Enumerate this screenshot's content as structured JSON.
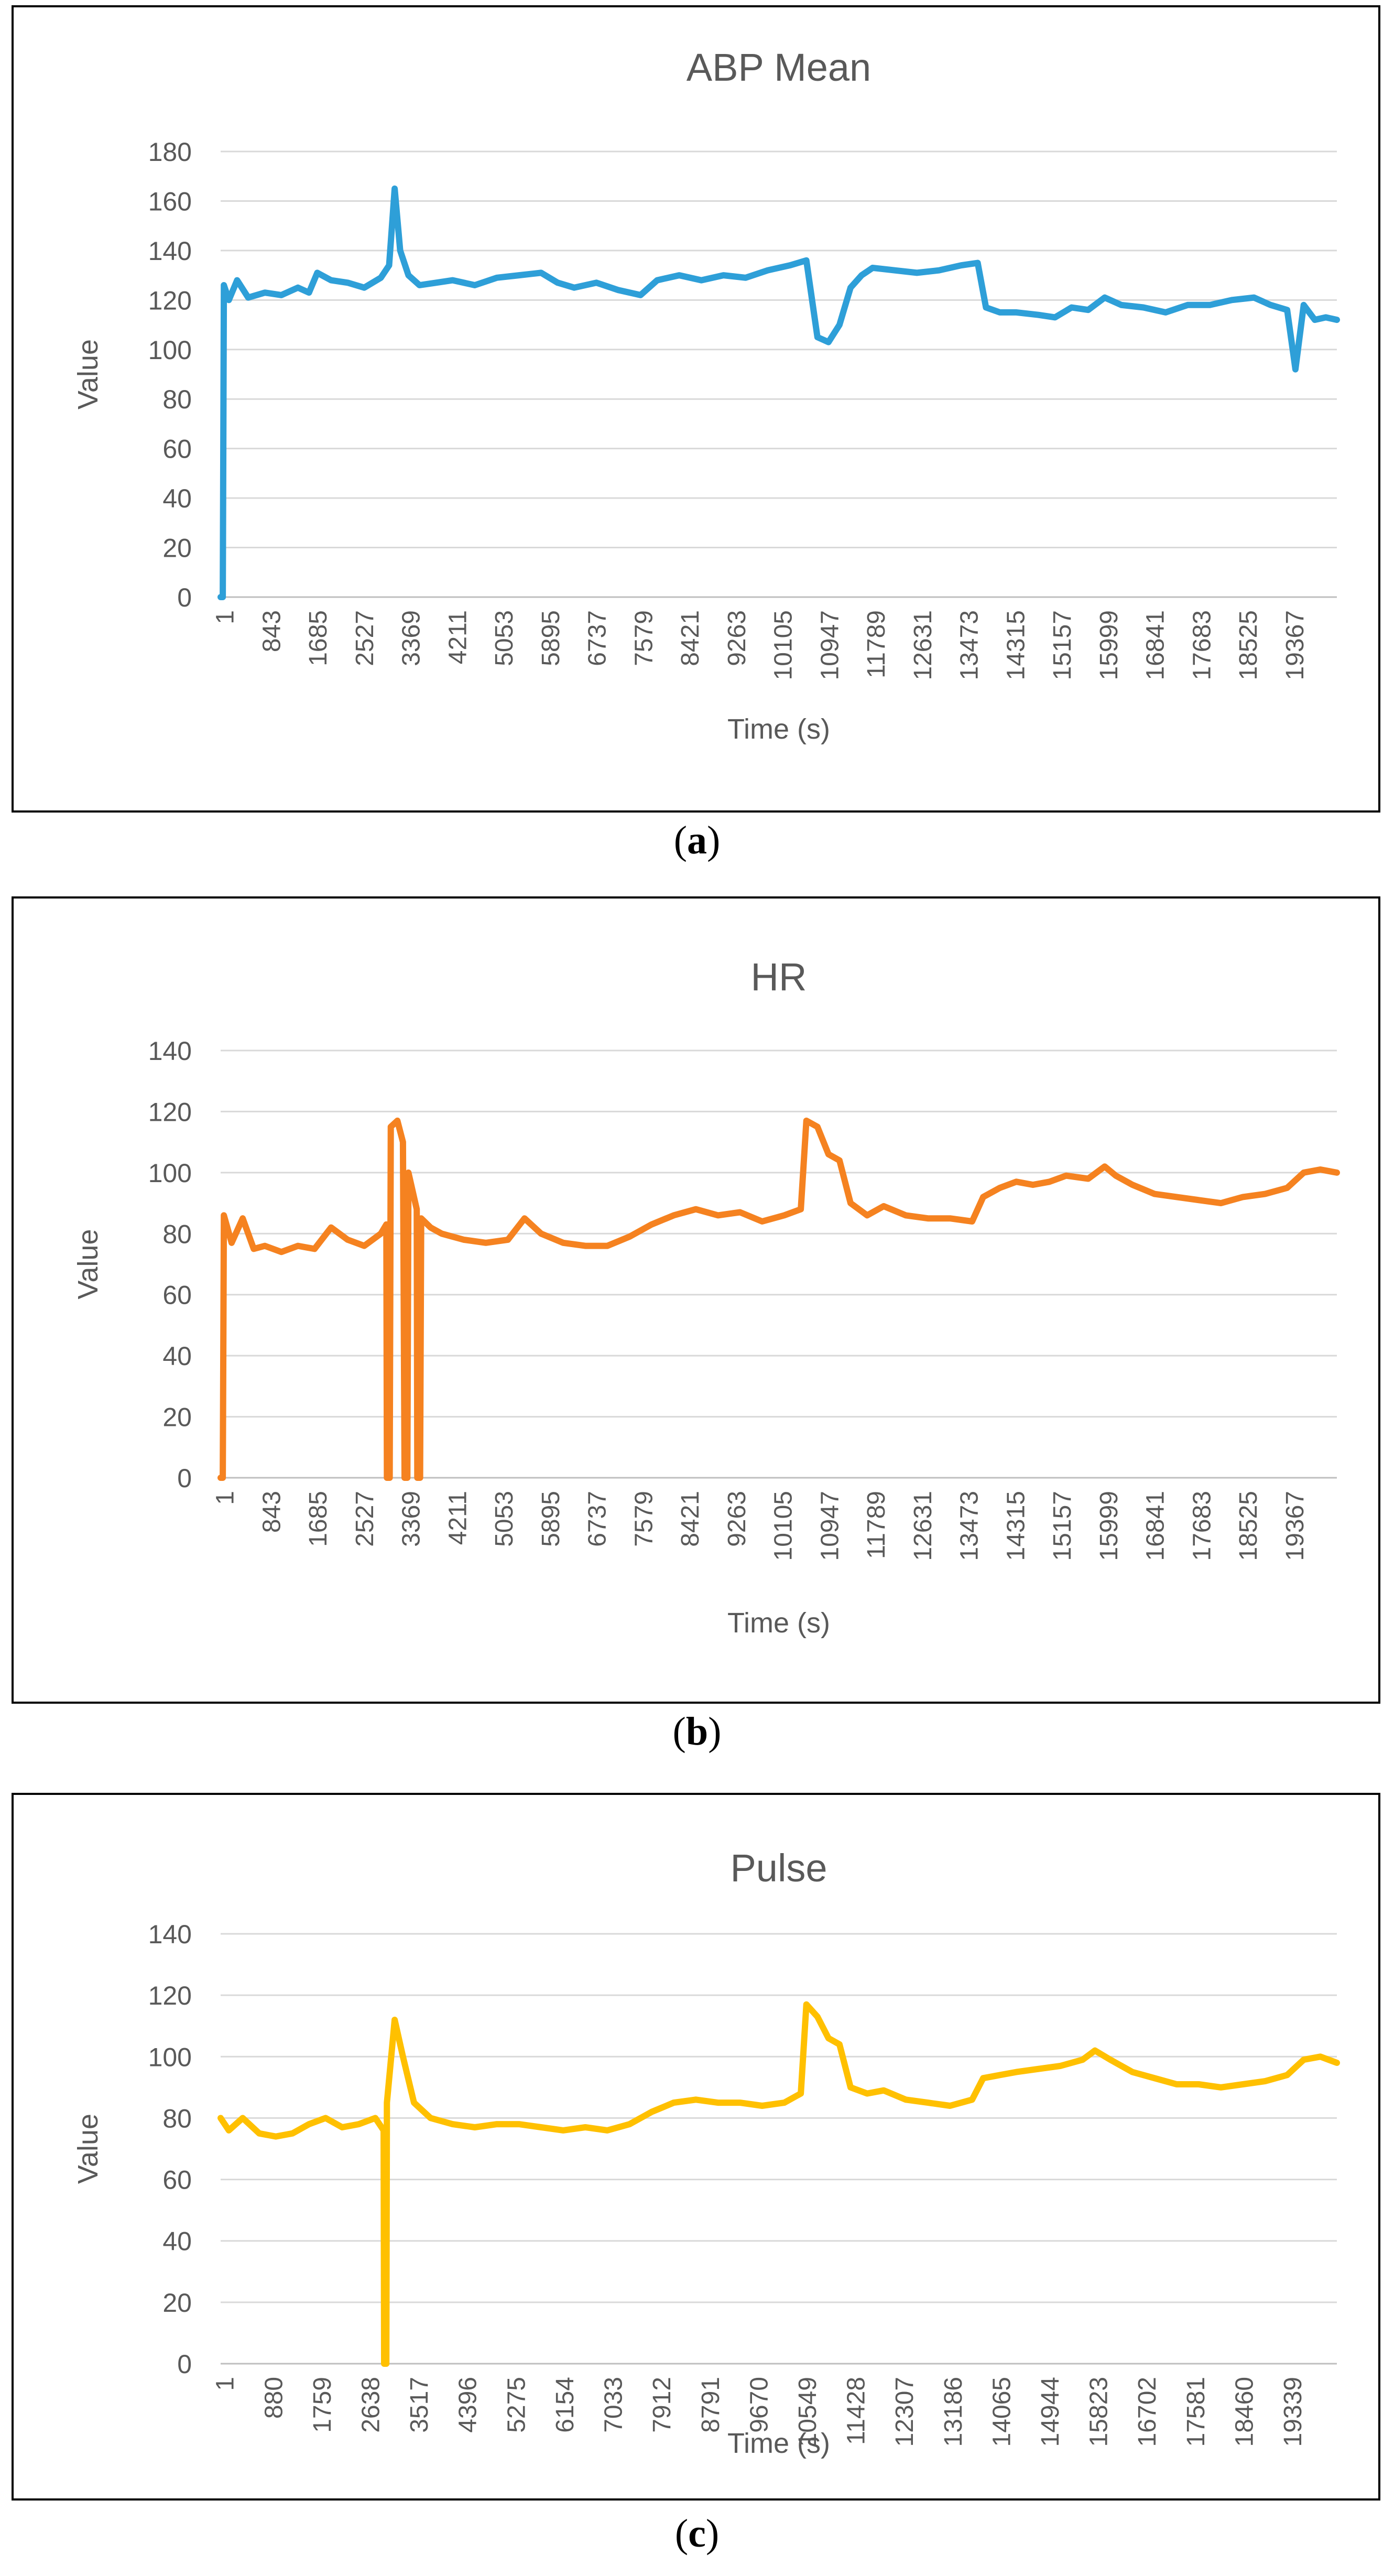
{
  "charts": [
    {
      "caption_open": "(",
      "caption_letter": "a",
      "caption_close": ")",
      "chart_data": {
        "type": "line",
        "title": "ABP Mean",
        "xlabel": "Time (s)",
        "ylabel": "Value",
        "ylim": [
          0,
          180
        ],
        "yticks": [
          "0",
          "20",
          "40",
          "60",
          "80",
          "100",
          "120",
          "140",
          "160",
          "180"
        ],
        "x_tick_labels": [
          "1",
          "843",
          "1685",
          "2527",
          "3369",
          "4211",
          "5053",
          "5895",
          "6737",
          "7579",
          "8421",
          "9263",
          "10105",
          "10947",
          "11789",
          "12631",
          "13473",
          "14315",
          "15157",
          "15999",
          "16841",
          "17683",
          "18525",
          "19367"
        ],
        "x_range": [
          1,
          20200
        ],
        "color": "#2e9fd8",
        "series": [
          {
            "name": "ABP Mean",
            "values": [
              [
                1,
                0
              ],
              [
                40,
                0
              ],
              [
                60,
                126
              ],
              [
                150,
                120
              ],
              [
                300,
                128
              ],
              [
                500,
                121
              ],
              [
                800,
                123
              ],
              [
                1100,
                122
              ],
              [
                1400,
                125
              ],
              [
                1600,
                123
              ],
              [
                1750,
                131
              ],
              [
                2000,
                128
              ],
              [
                2300,
                127
              ],
              [
                2600,
                125
              ],
              [
                2900,
                129
              ],
              [
                3050,
                134
              ],
              [
                3150,
                165
              ],
              [
                3250,
                140
              ],
              [
                3400,
                130
              ],
              [
                3600,
                126
              ],
              [
                3900,
                127
              ],
              [
                4200,
                128
              ],
              [
                4600,
                126
              ],
              [
                5000,
                129
              ],
              [
                5400,
                130
              ],
              [
                5800,
                131
              ],
              [
                6100,
                127
              ],
              [
                6400,
                125
              ],
              [
                6800,
                127
              ],
              [
                7200,
                124
              ],
              [
                7600,
                122
              ],
              [
                7900,
                128
              ],
              [
                8300,
                130
              ],
              [
                8700,
                128
              ],
              [
                9100,
                130
              ],
              [
                9500,
                129
              ],
              [
                9900,
                132
              ],
              [
                10300,
                134
              ],
              [
                10600,
                136
              ],
              [
                10800,
                105
              ],
              [
                11000,
                103
              ],
              [
                11200,
                110
              ],
              [
                11400,
                125
              ],
              [
                11600,
                130
              ],
              [
                11800,
                133
              ],
              [
                12200,
                132
              ],
              [
                12600,
                131
              ],
              [
                13000,
                132
              ],
              [
                13400,
                134
              ],
              [
                13700,
                135
              ],
              [
                13850,
                117
              ],
              [
                14100,
                115
              ],
              [
                14400,
                115
              ],
              [
                14800,
                114
              ],
              [
                15100,
                113
              ],
              [
                15400,
                117
              ],
              [
                15700,
                116
              ],
              [
                15999,
                121
              ],
              [
                16300,
                118
              ],
              [
                16700,
                117
              ],
              [
                17100,
                115
              ],
              [
                17500,
                118
              ],
              [
                17900,
                118
              ],
              [
                18300,
                120
              ],
              [
                18700,
                121
              ],
              [
                19000,
                118
              ],
              [
                19300,
                116
              ],
              [
                19450,
                92
              ],
              [
                19600,
                118
              ],
              [
                19800,
                112
              ],
              [
                20000,
                113
              ],
              [
                20200,
                112
              ]
            ]
          }
        ]
      }
    },
    {
      "caption_open": "(",
      "caption_letter": "b",
      "caption_close": ")",
      "chart_data": {
        "type": "line",
        "title": "HR",
        "xlabel": "Time (s)",
        "ylabel": "Value",
        "ylim": [
          0,
          140
        ],
        "yticks": [
          "0",
          "20",
          "40",
          "60",
          "80",
          "100",
          "120",
          "140"
        ],
        "x_tick_labels": [
          "1",
          "843",
          "1685",
          "2527",
          "3369",
          "4211",
          "5053",
          "5895",
          "6737",
          "7579",
          "8421",
          "9263",
          "10105",
          "10947",
          "11789",
          "12631",
          "13473",
          "14315",
          "15157",
          "15999",
          "16841",
          "17683",
          "18525",
          "19367"
        ],
        "x_range": [
          1,
          20200
        ],
        "color": "#f58220",
        "series": [
          {
            "name": "HR",
            "values": [
              [
                1,
                0
              ],
              [
                40,
                0
              ],
              [
                60,
                86
              ],
              [
                200,
                77
              ],
              [
                400,
                85
              ],
              [
                600,
                75
              ],
              [
                800,
                76
              ],
              [
                1100,
                74
              ],
              [
                1400,
                76
              ],
              [
                1700,
                75
              ],
              [
                2000,
                82
              ],
              [
                2300,
                78
              ],
              [
                2600,
                76
              ],
              [
                2900,
                80
              ],
              [
                3000,
                83
              ],
              [
                3010,
                0
              ],
              [
                3060,
                0
              ],
              [
                3080,
                115
              ],
              [
                3200,
                117
              ],
              [
                3300,
                110
              ],
              [
                3330,
                0
              ],
              [
                3380,
                0
              ],
              [
                3400,
                100
              ],
              [
                3550,
                88
              ],
              [
                3560,
                0
              ],
              [
                3610,
                0
              ],
              [
                3630,
                85
              ],
              [
                3800,
                82
              ],
              [
                4000,
                80
              ],
              [
                4400,
                78
              ],
              [
                4800,
                77
              ],
              [
                5200,
                78
              ],
              [
                5500,
                85
              ],
              [
                5800,
                80
              ],
              [
                6200,
                77
              ],
              [
                6600,
                76
              ],
              [
                7000,
                76
              ],
              [
                7400,
                79
              ],
              [
                7800,
                83
              ],
              [
                8200,
                86
              ],
              [
                8600,
                88
              ],
              [
                9000,
                86
              ],
              [
                9400,
                87
              ],
              [
                9800,
                84
              ],
              [
                10200,
                86
              ],
              [
                10500,
                88
              ],
              [
                10600,
                117
              ],
              [
                10800,
                115
              ],
              [
                11000,
                106
              ],
              [
                11200,
                104
              ],
              [
                11400,
                90
              ],
              [
                11700,
                86
              ],
              [
                12000,
                89
              ],
              [
                12400,
                86
              ],
              [
                12800,
                85
              ],
              [
                13200,
                85
              ],
              [
                13600,
                84
              ],
              [
                13800,
                92
              ],
              [
                14100,
                95
              ],
              [
                14400,
                97
              ],
              [
                14700,
                96
              ],
              [
                15000,
                97
              ],
              [
                15300,
                99
              ],
              [
                15700,
                98
              ],
              [
                15999,
                102
              ],
              [
                16200,
                99
              ],
              [
                16500,
                96
              ],
              [
                16900,
                93
              ],
              [
                17300,
                92
              ],
              [
                17700,
                91
              ],
              [
                18100,
                90
              ],
              [
                18500,
                92
              ],
              [
                18900,
                93
              ],
              [
                19300,
                95
              ],
              [
                19600,
                100
              ],
              [
                19900,
                101
              ],
              [
                20200,
                100
              ]
            ]
          }
        ]
      }
    },
    {
      "caption_open": "(",
      "caption_letter": "c",
      "caption_close": ")",
      "chart_data": {
        "type": "line",
        "title": "Pulse",
        "xlabel": "Time (s)",
        "ylabel": "Value",
        "ylim": [
          0,
          140
        ],
        "yticks": [
          "0",
          "20",
          "40",
          "60",
          "80",
          "100",
          "120",
          "140"
        ],
        "x_tick_labels": [
          "1",
          "880",
          "1759",
          "2638",
          "3517",
          "4396",
          "5275",
          "6154",
          "7033",
          "7912",
          "8791",
          "9670",
          "10549",
          "11428",
          "12307",
          "13186",
          "14065",
          "14944",
          "15823",
          "16702",
          "17581",
          "18460",
          "19339"
        ],
        "x_range": [
          1,
          20200
        ],
        "color": "#ffc000",
        "series": [
          {
            "name": "Pulse",
            "values": [
              [
                1,
                80
              ],
              [
                150,
                76
              ],
              [
                400,
                80
              ],
              [
                700,
                75
              ],
              [
                1000,
                74
              ],
              [
                1300,
                75
              ],
              [
                1600,
                78
              ],
              [
                1900,
                80
              ],
              [
                2200,
                77
              ],
              [
                2500,
                78
              ],
              [
                2800,
                80
              ],
              [
                2950,
                76
              ],
              [
                2960,
                0
              ],
              [
                3000,
                0
              ],
              [
                3010,
                85
              ],
              [
                3150,
                112
              ],
              [
                3300,
                100
              ],
              [
                3500,
                85
              ],
              [
                3800,
                80
              ],
              [
                4200,
                78
              ],
              [
                4600,
                77
              ],
              [
                5000,
                78
              ],
              [
                5400,
                78
              ],
              [
                5800,
                77
              ],
              [
                6200,
                76
              ],
              [
                6600,
                77
              ],
              [
                7000,
                76
              ],
              [
                7400,
                78
              ],
              [
                7800,
                82
              ],
              [
                8200,
                85
              ],
              [
                8600,
                86
              ],
              [
                9000,
                85
              ],
              [
                9400,
                85
              ],
              [
                9800,
                84
              ],
              [
                10200,
                85
              ],
              [
                10500,
                88
              ],
              [
                10600,
                117
              ],
              [
                10800,
                113
              ],
              [
                11000,
                106
              ],
              [
                11200,
                104
              ],
              [
                11400,
                90
              ],
              [
                11700,
                88
              ],
              [
                12000,
                89
              ],
              [
                12400,
                86
              ],
              [
                12800,
                85
              ],
              [
                13200,
                84
              ],
              [
                13600,
                86
              ],
              [
                13800,
                93
              ],
              [
                14100,
                94
              ],
              [
                14400,
                95
              ],
              [
                14800,
                96
              ],
              [
                15200,
                97
              ],
              [
                15600,
                99
              ],
              [
                15823,
                102
              ],
              [
                16100,
                99
              ],
              [
                16500,
                95
              ],
              [
                16900,
                93
              ],
              [
                17300,
                91
              ],
              [
                17700,
                91
              ],
              [
                18100,
                90
              ],
              [
                18500,
                91
              ],
              [
                18900,
                92
              ],
              [
                19300,
                94
              ],
              [
                19600,
                99
              ],
              [
                19900,
                100
              ],
              [
                20200,
                98
              ]
            ]
          }
        ]
      }
    }
  ]
}
